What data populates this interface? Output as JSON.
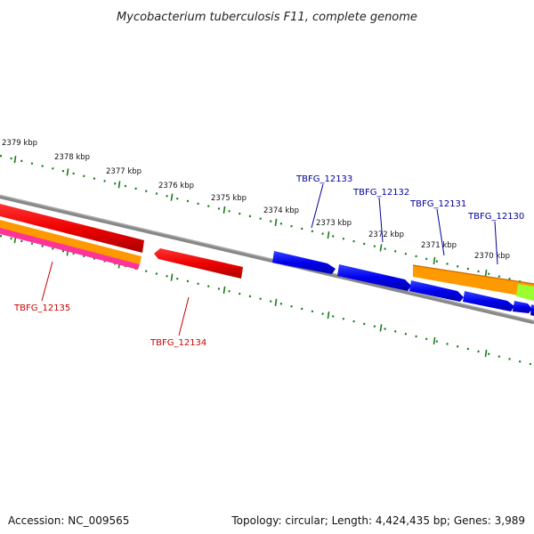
{
  "title": "Mycobacterium tuberculosis F11, complete genome",
  "ticks": [
    "2379 kbp",
    "2378 kbp",
    "2377 kbp",
    "2376 kbp",
    "2375 kbp",
    "2374 kbp",
    "2373 kbp",
    "2372 kbp",
    "2371 kbp",
    "2370 kbp"
  ],
  "genes": [
    {
      "label": "TBFG_12135",
      "color": "#cc0000"
    },
    {
      "label": "TBFG_12134",
      "color": "#cc0000"
    },
    {
      "label": "TBFG_12133",
      "color": "#000099"
    },
    {
      "label": "TBFG_12132",
      "color": "#000099"
    },
    {
      "label": "TBFG_12131",
      "color": "#000099"
    },
    {
      "label": "TBFG_12130",
      "color": "#000099"
    }
  ],
  "colors": {
    "backbone": "#888888",
    "ticks": "#1a7a1a",
    "forward_gene": "#0000ee",
    "reverse_gene": "#ee0000",
    "orange_feature": "#ff9900",
    "pink_feature": "#ff3399",
    "green_feature": "#99ff33"
  },
  "footer": {
    "accession": "Accession: NC_009565",
    "summary": "Topology: circular; Length: 4,424,435 bp; Genes: 3,989"
  }
}
